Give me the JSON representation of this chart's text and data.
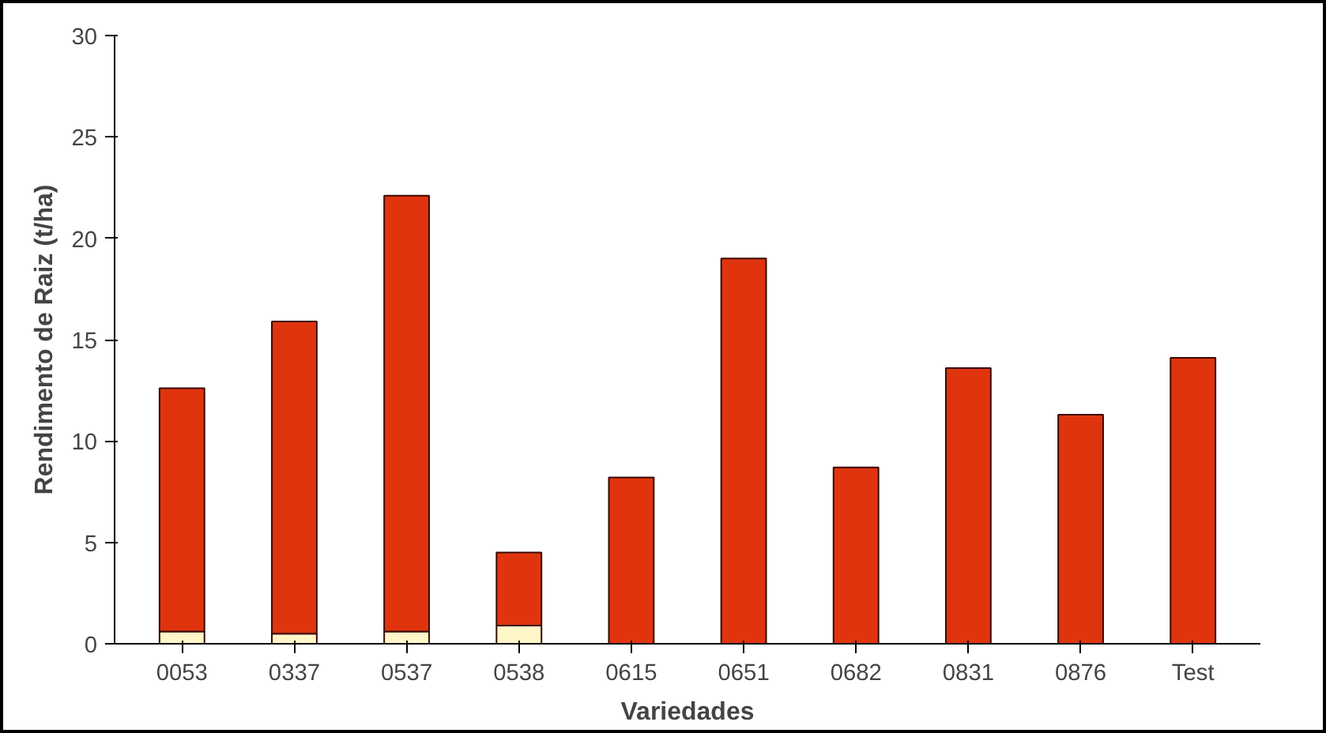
{
  "chart_data": {
    "type": "bar",
    "stacked": true,
    "xlabel": "Variedades",
    "ylabel": "Rendimento de Raiz (t/ha)",
    "categories": [
      "0053",
      "0337",
      "0537",
      "0538",
      "0615",
      "0651",
      "0682",
      "0831",
      "0876",
      "Test"
    ],
    "series": [
      {
        "color": "#fff6c8",
        "values": [
          0.6,
          0.5,
          0.6,
          0.9,
          null,
          null,
          null,
          null,
          null,
          null
        ]
      },
      {
        "color": "#e0340f",
        "values": [
          12.0,
          15.4,
          21.5,
          3.6,
          8.2,
          19.0,
          8.7,
          13.6,
          11.3,
          14.1
        ]
      }
    ],
    "ylim": [
      0,
      30
    ],
    "yticks": [
      0,
      5,
      10,
      15,
      20,
      25,
      30
    ],
    "grid": false
  }
}
